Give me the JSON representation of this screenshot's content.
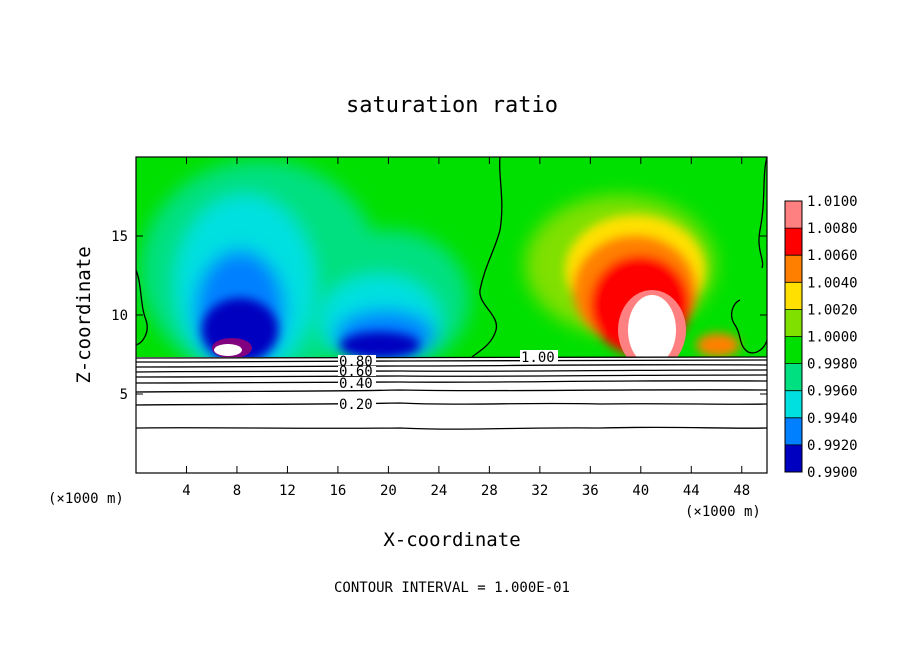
{
  "chart_data": {
    "type": "heatmap",
    "title": "saturation ratio",
    "xlabel": "X-coordinate",
    "ylabel": "Z-coordinate",
    "x_unit": "(×1000 m)",
    "y_unit": "(×1000 m)",
    "xlim": [
      0,
      50
    ],
    "ylim": [
      0,
      20
    ],
    "x_ticks": [
      4,
      8,
      12,
      16,
      20,
      24,
      28,
      32,
      36,
      40,
      44,
      48
    ],
    "y_ticks": [
      5,
      10,
      15
    ],
    "colorbar": {
      "levels": [
        "1.0100",
        "1.0080",
        "1.0060",
        "1.0040",
        "1.0020",
        "1.0000",
        "0.9980",
        "0.9960",
        "0.9940",
        "0.9920",
        "0.9900"
      ],
      "colors": [
        "#ff8080",
        "#ff0000",
        "#ff8000",
        "#ffe000",
        "#80e000",
        "#00e000",
        "#00e080",
        "#00e0e0",
        "#0080ff",
        "#0000c0",
        "#800080"
      ]
    },
    "contour_labels": [
      {
        "text": "1.00",
        "x": 31.5,
        "z": 7.1
      },
      {
        "text": "0.80",
        "x": 17.9,
        "z": 6.9
      },
      {
        "text": "0.60",
        "x": 17.9,
        "z": 6.4
      },
      {
        "text": "0.40",
        "x": 17.7,
        "z": 5.6
      },
      {
        "text": "0.20",
        "x": 17.7,
        "z": 4.2
      }
    ],
    "contour_interval_text": "CONTOUR INTERVAL = 1.000E-01"
  }
}
